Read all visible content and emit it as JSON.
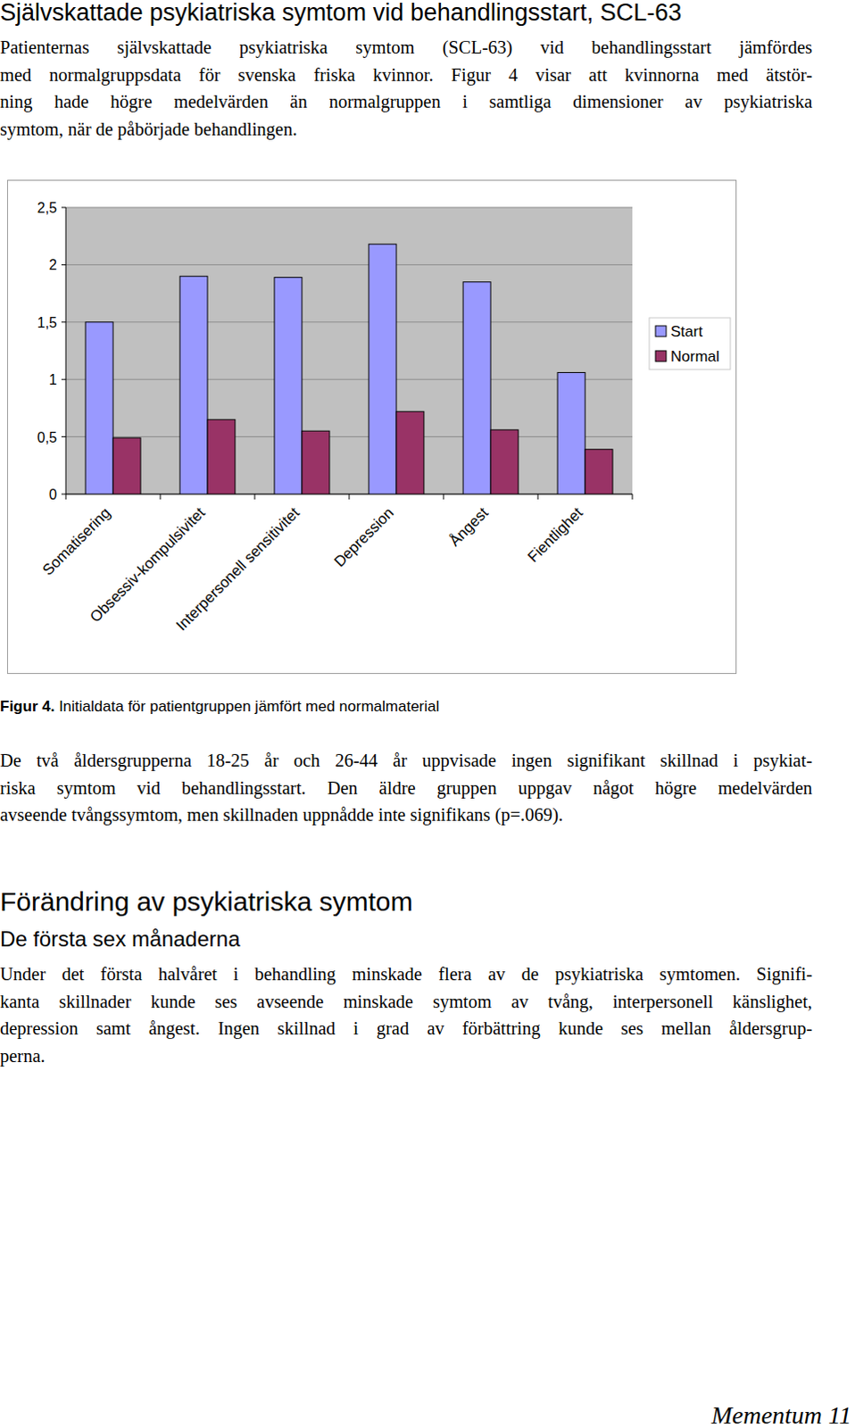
{
  "title": "Självskattade psykiatriska symtom vid behandlingsstart, SCL-63",
  "intro": [
    "Patienternas självskattade psykiatriska symtom (SCL-63) vid behandlingsstart jämfördes",
    "med normalgruppsdata för svenska friska kvinnor. Figur 4 visar att kvinnorna med ätstör-",
    "ning hade högre medelvärden än normalgruppen i samtliga dimensioner av psykiatriska",
    "symtom, när de påbörjade behandlingen."
  ],
  "chart_data": {
    "type": "bar",
    "categories": [
      "Somatisering",
      "Obsessiv-kompulsivitet",
      "Interpersonell sensitivitet",
      "Depression",
      "Ångest",
      "Fientlighet"
    ],
    "series": [
      {
        "name": "Start",
        "color": "#9999ff",
        "values": [
          1.5,
          1.9,
          1.89,
          2.18,
          1.85,
          1.06
        ]
      },
      {
        "name": "Normal",
        "color": "#993366",
        "values": [
          0.49,
          0.65,
          0.55,
          0.72,
          0.56,
          0.39
        ]
      }
    ],
    "ylim": [
      0,
      2.5
    ],
    "yticks": [
      0,
      {
        "value": 0.5,
        "label": "0,5"
      },
      1,
      {
        "value": 1.5,
        "label": "1,5"
      },
      2,
      {
        "value": 2.5,
        "label": "2,5"
      }
    ],
    "grid": true,
    "legend": "right"
  },
  "figure": {
    "label": "Figur 4.",
    "caption": "Initialdata för patientgruppen jämfört med normalmaterial"
  },
  "paragraph2": [
    "De två åldersgrupperna 18-25 år och 26-44 år uppvisade ingen signifikant skillnad i psykiat-",
    "riska symtom vid behandlingsstart. Den äldre gruppen uppgav något högre medelvärden",
    "avseende tvångssymtom, men skillnaden uppnådde inte signifikans (p=.069)."
  ],
  "heading2": "Förändring av psykiatriska symtom",
  "subheading": "De första sex månaderna",
  "paragraph3": [
    "Under det första halvåret i behandling minskade flera av de psykiatriska symtomen. Signifi-",
    "kanta skillnader kunde ses avseende minskade symtom av tvång, interpersonell känslighet,",
    "depression samt ångest. Ingen skillnad i grad av förbättring kunde ses mellan åldersgrup-",
    "perna."
  ],
  "footer": "Mementum 11"
}
